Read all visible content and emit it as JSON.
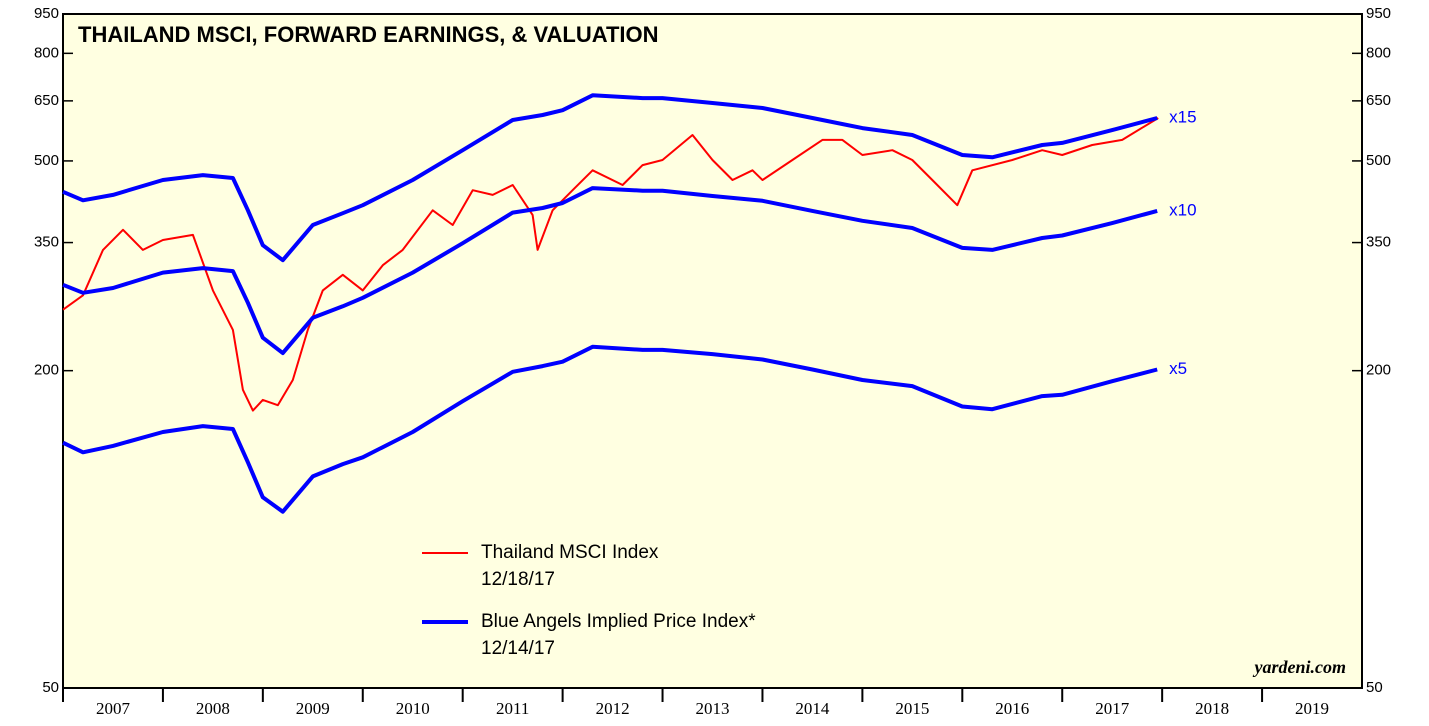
{
  "chart_data": {
    "type": "line",
    "title": "THAILAND MSCI, FORWARD EARNINGS, & VALUATION",
    "source": "yardeni.com",
    "log_scale": true,
    "xlim": [
      2007,
      2020
    ],
    "xticks": [
      2007,
      2008,
      2009,
      2010,
      2011,
      2012,
      2013,
      2014,
      2015,
      2016,
      2017,
      2018,
      2019
    ],
    "ylim": [
      50,
      950
    ],
    "yticks": [
      50,
      200,
      350,
      500,
      650,
      800,
      950
    ],
    "series": [
      {
        "name": "Thailand MSCI Index",
        "date": "12/18/17",
        "color": "#ff0000",
        "x": [
          2007.0,
          2007.2,
          2007.4,
          2007.6,
          2007.8,
          2008.0,
          2008.3,
          2008.5,
          2008.7,
          2008.8,
          2008.9,
          2009.0,
          2009.15,
          2009.3,
          2009.45,
          2009.6,
          2009.8,
          2010.0,
          2010.2,
          2010.4,
          2010.7,
          2010.9,
          2011.1,
          2011.3,
          2011.5,
          2011.7,
          2011.75,
          2011.9,
          2012.1,
          2012.3,
          2012.6,
          2012.8,
          2013.0,
          2013.3,
          2013.5,
          2013.7,
          2013.9,
          2014.0,
          2014.3,
          2014.6,
          2014.8,
          2015.0,
          2015.3,
          2015.5,
          2015.7,
          2015.95,
          2016.1,
          2016.5,
          2016.8,
          2017.0,
          2017.3,
          2017.6,
          2017.96
        ],
        "values": [
          261,
          278,
          339,
          370,
          339,
          354,
          362,
          284,
          239,
          184,
          168,
          176,
          172,
          192,
          239,
          284,
          304,
          284,
          317,
          339,
          403,
          378,
          440,
          431,
          450,
          395,
          339,
          403,
          440,
          480,
          450,
          491,
          502,
          560,
          502,
          460,
          480,
          460,
          502,
          548,
          548,
          513,
          524,
          502,
          460,
          412,
          480,
          502,
          524,
          513,
          536,
          548,
          603
        ]
      },
      {
        "name": "Blue Angels Implied Price Index*",
        "date": "12/14/17",
        "color": "#0000ff",
        "label": "x15",
        "x": [
          2007.0,
          2007.2,
          2007.5,
          2008.0,
          2008.4,
          2008.7,
          2008.85,
          2009.0,
          2009.2,
          2009.5,
          2009.8,
          2010.0,
          2010.5,
          2011.0,
          2011.5,
          2011.8,
          2012.0,
          2012.3,
          2012.8,
          2013.0,
          2013.5,
          2014.0,
          2014.5,
          2015.0,
          2015.5,
          2016.0,
          2016.3,
          2016.8,
          2017.0,
          2017.5,
          2017.95
        ],
        "values": [
          437,
          421,
          431,
          460,
          470,
          464,
          403,
          346,
          324,
          378,
          398,
          412,
          460,
          524,
          598,
          611,
          624,
          666,
          658,
          658,
          644,
          630,
          603,
          577,
          560,
          513,
          508,
          536,
          541,
          572,
          603
        ]
      },
      {
        "color": "#0000ff",
        "label": "x10",
        "x": [
          2007.0,
          2007.2,
          2007.5,
          2008.0,
          2008.4,
          2008.7,
          2008.85,
          2009.0,
          2009.2,
          2009.5,
          2009.8,
          2010.0,
          2010.5,
          2011.0,
          2011.5,
          2011.8,
          2012.0,
          2012.3,
          2012.8,
          2013.0,
          2013.5,
          2014.0,
          2014.5,
          2015.0,
          2015.5,
          2016.0,
          2016.3,
          2016.8,
          2017.0,
          2017.5,
          2017.95
        ],
        "values": [
          291,
          281,
          287,
          307,
          313,
          309,
          269,
          231,
          216,
          252,
          265,
          275,
          307,
          349,
          399,
          407,
          416,
          444,
          439,
          439,
          429,
          420,
          402,
          385,
          373,
          342,
          339,
          357,
          361,
          381,
          402
        ]
      },
      {
        "color": "#0000ff",
        "label": "x5",
        "x": [
          2007.0,
          2007.2,
          2007.5,
          2008.0,
          2008.4,
          2008.7,
          2008.85,
          2009.0,
          2009.2,
          2009.5,
          2009.8,
          2010.0,
          2010.5,
          2011.0,
          2011.5,
          2011.8,
          2012.0,
          2012.3,
          2012.8,
          2013.0,
          2013.5,
          2014.0,
          2014.5,
          2015.0,
          2015.5,
          2016.0,
          2016.3,
          2016.8,
          2017.0,
          2017.5,
          2017.95
        ],
        "values": [
          146,
          140,
          144,
          153,
          157,
          155,
          134,
          115,
          108,
          126,
          133,
          137,
          153,
          175,
          199,
          204,
          208,
          222,
          219,
          219,
          215,
          210,
          201,
          192,
          187,
          171,
          169,
          179,
          180,
          191,
          201
        ]
      }
    ]
  }
}
